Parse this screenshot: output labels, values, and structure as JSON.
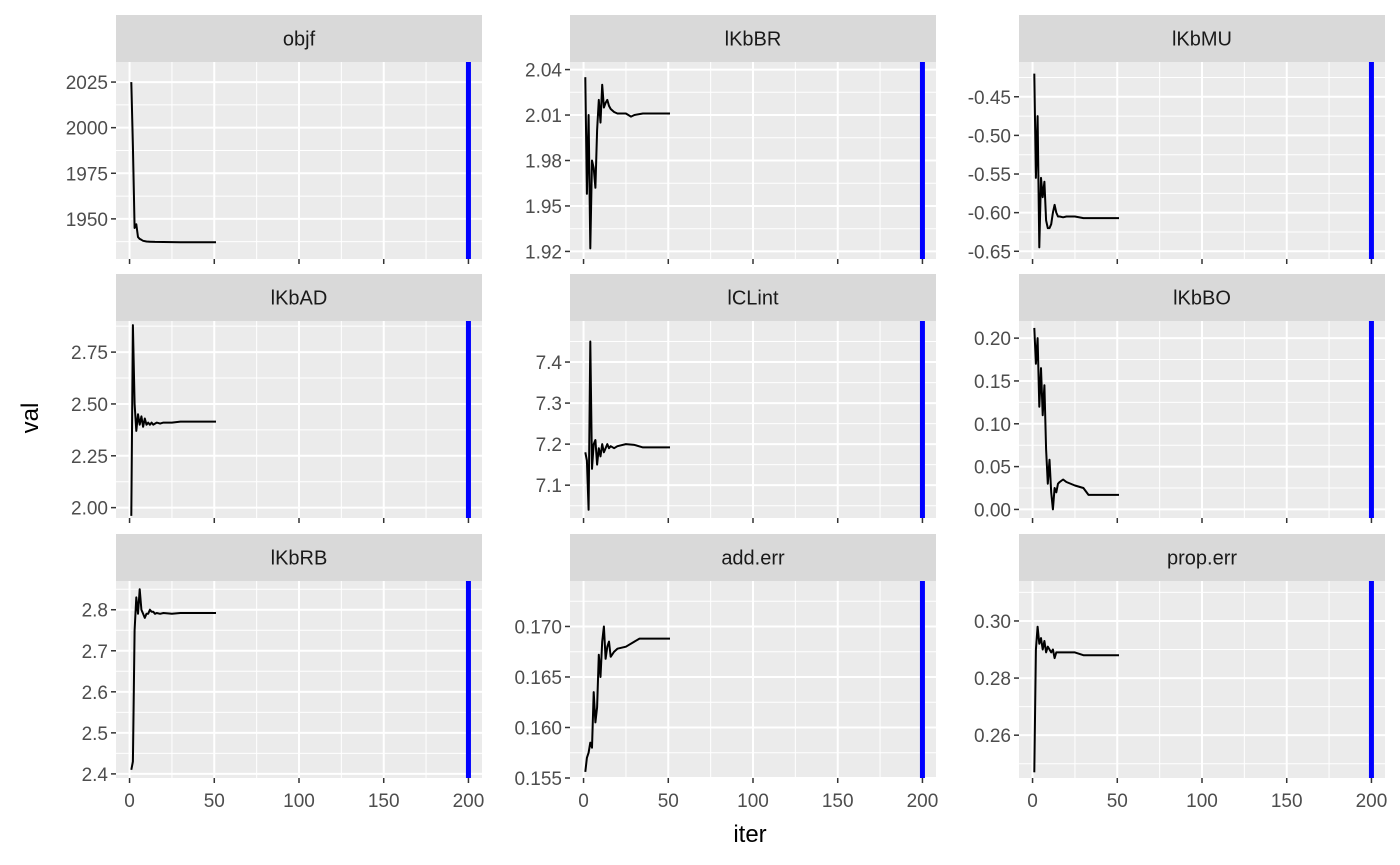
{
  "chart_data": {
    "type": "line",
    "layout": "facet-grid-3x3",
    "xlabel": "iter",
    "ylabel": "val",
    "xlim": [
      -8,
      208
    ],
    "x_ticks": [
      0,
      50,
      100,
      150,
      200
    ],
    "x_tick_labels": [
      "0",
      "50",
      "100",
      "150",
      "200"
    ],
    "vline": {
      "x": 200,
      "color": "#0000ff"
    },
    "colors": {
      "panel_bg": "#ebebeb",
      "strip_bg": "#d9d9d9",
      "grid": "#ffffff",
      "line": "#000000",
      "tick": "#333333"
    },
    "panels": [
      {
        "name": "objf",
        "ylim": [
          1928,
          2036
        ],
        "y_ticks": [
          1950,
          1975,
          2000,
          2025
        ],
        "y_tick_labels": [
          "1950",
          "1975",
          "2000",
          "2025"
        ],
        "x": [
          1,
          2,
          3,
          4,
          5,
          6,
          7,
          8,
          10,
          12,
          15,
          20,
          30,
          40,
          51
        ],
        "y": [
          2025,
          1990,
          1945,
          1947,
          1940,
          1939,
          1938.5,
          1938,
          1937.6,
          1937.5,
          1937.4,
          1937.3,
          1937.2,
          1937.2,
          1937.2
        ]
      },
      {
        "name": "lKbBR",
        "ylim": [
          1.915,
          2.045
        ],
        "y_ticks": [
          1.92,
          1.95,
          1.98,
          2.01,
          2.04
        ],
        "y_tick_labels": [
          "1.92",
          "1.95",
          "1.98",
          "2.01",
          "2.04"
        ],
        "x": [
          1,
          2,
          3,
          4,
          5,
          6,
          7,
          8,
          9,
          10,
          11,
          12,
          13,
          14,
          15,
          16,
          17,
          18,
          20,
          22,
          25,
          28,
          30,
          35,
          40,
          45,
          51
        ],
        "y": [
          2.035,
          1.958,
          2.01,
          1.922,
          1.98,
          1.975,
          1.962,
          2.0,
          2.02,
          2.005,
          2.03,
          2.015,
          2.018,
          2.02,
          2.016,
          2.014,
          2.013,
          2.012,
          2.011,
          2.011,
          2.011,
          2.009,
          2.01,
          2.011,
          2.011,
          2.011,
          2.011
        ]
      },
      {
        "name": "lKbMU",
        "ylim": [
          -0.66,
          -0.405
        ],
        "y_ticks": [
          -0.65,
          -0.6,
          -0.55,
          -0.5,
          -0.45
        ],
        "y_tick_labels": [
          "-0.65",
          "-0.60",
          "-0.55",
          "-0.50",
          "-0.45"
        ],
        "x": [
          1,
          2,
          3,
          4,
          5,
          6,
          7,
          8,
          9,
          10,
          11,
          12,
          13,
          14,
          15,
          16,
          18,
          20,
          25,
          30,
          40,
          51
        ],
        "y": [
          -0.42,
          -0.555,
          -0.475,
          -0.645,
          -0.555,
          -0.58,
          -0.56,
          -0.61,
          -0.62,
          -0.62,
          -0.615,
          -0.6,
          -0.59,
          -0.6,
          -0.605,
          -0.605,
          -0.606,
          -0.605,
          -0.605,
          -0.607,
          -0.607,
          -0.607
        ]
      },
      {
        "name": "lKbAD",
        "ylim": [
          1.95,
          2.9
        ],
        "y_ticks": [
          2.0,
          2.25,
          2.5,
          2.75
        ],
        "y_tick_labels": [
          "2.00",
          "2.25",
          "2.50",
          "2.75"
        ],
        "x": [
          1,
          2,
          3,
          4,
          5,
          6,
          7,
          8,
          9,
          10,
          11,
          12,
          13,
          14,
          15,
          16,
          18,
          20,
          25,
          30,
          35,
          40,
          45,
          51
        ],
        "y": [
          1.96,
          2.88,
          2.5,
          2.37,
          2.45,
          2.4,
          2.44,
          2.39,
          2.43,
          2.4,
          2.41,
          2.4,
          2.41,
          2.4,
          2.405,
          2.41,
          2.405,
          2.41,
          2.41,
          2.415,
          2.415,
          2.415,
          2.415,
          2.415
        ]
      },
      {
        "name": "lCLint",
        "ylim": [
          7.02,
          7.5
        ],
        "y_ticks": [
          7.1,
          7.2,
          7.3,
          7.4
        ],
        "y_tick_labels": [
          "7.1",
          "7.2",
          "7.3",
          "7.4"
        ],
        "x": [
          1,
          2,
          3,
          4,
          5,
          6,
          7,
          8,
          9,
          10,
          11,
          12,
          13,
          14,
          15,
          16,
          18,
          20,
          25,
          30,
          35,
          40,
          45,
          51
        ],
        "y": [
          7.18,
          7.16,
          7.04,
          7.45,
          7.14,
          7.2,
          7.21,
          7.15,
          7.19,
          7.17,
          7.2,
          7.18,
          7.19,
          7.2,
          7.19,
          7.195,
          7.19,
          7.195,
          7.2,
          7.198,
          7.192,
          7.192,
          7.192,
          7.192
        ]
      },
      {
        "name": "lKbBO",
        "ylim": [
          -0.01,
          0.22
        ],
        "y_ticks": [
          0.0,
          0.05,
          0.1,
          0.15,
          0.2
        ],
        "y_tick_labels": [
          "0.00",
          "0.05",
          "0.10",
          "0.15",
          "0.20"
        ],
        "x": [
          1,
          2,
          3,
          4,
          5,
          6,
          7,
          8,
          9,
          10,
          11,
          12,
          13,
          14,
          15,
          16,
          18,
          20,
          25,
          30,
          33,
          40,
          51
        ],
        "y": [
          0.212,
          0.17,
          0.2,
          0.12,
          0.165,
          0.11,
          0.145,
          0.07,
          0.03,
          0.058,
          0.02,
          0.0,
          0.025,
          0.02,
          0.03,
          0.032,
          0.035,
          0.032,
          0.028,
          0.025,
          0.017,
          0.017,
          0.017
        ]
      },
      {
        "name": "lKbRB",
        "ylim": [
          2.39,
          2.87
        ],
        "y_ticks": [
          2.4,
          2.5,
          2.6,
          2.7,
          2.8
        ],
        "y_tick_labels": [
          "2.4",
          "2.5",
          "2.6",
          "2.7",
          "2.8"
        ],
        "x": [
          1,
          2,
          3,
          4,
          5,
          6,
          7,
          8,
          9,
          10,
          11,
          12,
          13,
          14,
          15,
          16,
          18,
          20,
          25,
          30,
          40,
          51
        ],
        "y": [
          2.41,
          2.43,
          2.75,
          2.83,
          2.79,
          2.85,
          2.8,
          2.79,
          2.78,
          2.79,
          2.79,
          2.8,
          2.795,
          2.795,
          2.79,
          2.792,
          2.79,
          2.792,
          2.79,
          2.792,
          2.792,
          2.792
        ]
      },
      {
        "name": "add.err",
        "ylim": [
          0.155,
          0.1745
        ],
        "y_ticks": [
          0.155,
          0.16,
          0.165,
          0.17
        ],
        "y_tick_labels": [
          "0.155",
          "0.160",
          "0.165",
          "0.170"
        ],
        "x": [
          1,
          2,
          3,
          4,
          5,
          6,
          7,
          8,
          9,
          10,
          11,
          12,
          13,
          14,
          15,
          16,
          18,
          20,
          25,
          30,
          33,
          40,
          51
        ],
        "y": [
          0.1556,
          0.157,
          0.1575,
          0.1585,
          0.158,
          0.1635,
          0.1605,
          0.162,
          0.1672,
          0.165,
          0.1685,
          0.17,
          0.1668,
          0.168,
          0.1685,
          0.167,
          0.1675,
          0.1678,
          0.168,
          0.1685,
          0.1688,
          0.1688,
          0.1688
        ]
      },
      {
        "name": "prop.err",
        "ylim": [
          0.245,
          0.314
        ],
        "y_ticks": [
          0.26,
          0.28,
          0.3
        ],
        "y_tick_labels": [
          "0.26",
          "0.28",
          "0.30"
        ],
        "x": [
          1,
          2,
          3,
          4,
          5,
          6,
          7,
          8,
          9,
          10,
          11,
          12,
          13,
          14,
          15,
          16,
          18,
          20,
          25,
          30,
          33,
          40,
          51
        ],
        "y": [
          0.247,
          0.29,
          0.298,
          0.292,
          0.294,
          0.29,
          0.293,
          0.289,
          0.291,
          0.29,
          0.289,
          0.29,
          0.287,
          0.289,
          0.289,
          0.289,
          0.289,
          0.289,
          0.289,
          0.288,
          0.288,
          0.288,
          0.288
        ]
      }
    ]
  }
}
